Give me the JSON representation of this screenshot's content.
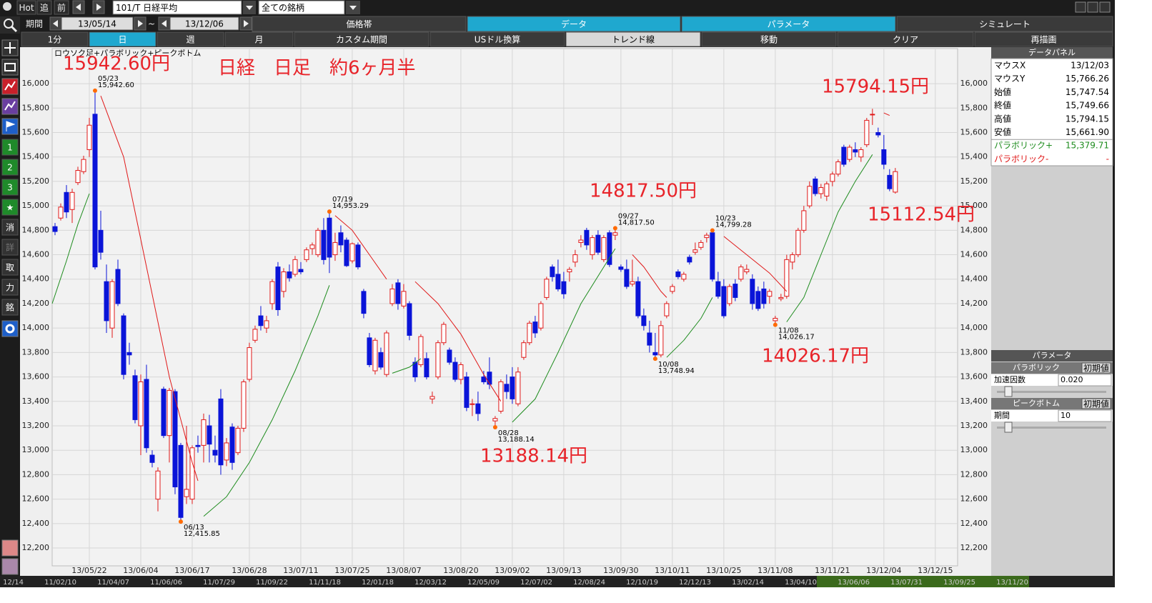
{
  "toolbar": {
    "buttons": [
      "Hot",
      "追",
      "前"
    ],
    "symbol": "101/T 日経平均",
    "filter": "全ての銘柄"
  },
  "period": {
    "label": "期間",
    "from": "13/05/14",
    "separator": "~",
    "to": "13/12/06"
  },
  "tabs": [
    "価格帯",
    "データ",
    "パラメータ",
    "シミュレート"
  ],
  "subtabs": [
    "1分",
    "日",
    "週",
    "月",
    "カスタム期間",
    "USドル換算",
    "トレンド線",
    "移動",
    "クリア",
    "再描画"
  ],
  "side_buttons": [
    "1",
    "2",
    "3",
    "★",
    "消",
    "詳",
    "取",
    "力",
    "銘"
  ],
  "chart_data": {
    "type": "candlestick",
    "title": "ロウソク足+パラボリック+ピークボトム",
    "annotations": [
      "15942.60円",
      "日経　日足　約6ヶ月半",
      "15794.15円",
      "14817.50円",
      "15112.54円",
      "13188.14円",
      "14026.17円"
    ],
    "xlim": [
      -0.5,
      157.9
    ],
    "ylim": [
      12054,
      16287
    ],
    "grid": true,
    "up_color": "#e01818",
    "down_color": "#0a14d8",
    "xticks": [
      {
        "value": 6,
        "label": "13/05/22"
      },
      {
        "value": 15,
        "label": "13/06/04"
      },
      {
        "value": 24,
        "label": "13/06/17"
      },
      {
        "value": 34,
        "label": "13/06/28"
      },
      {
        "value": 43,
        "label": "13/07/11"
      },
      {
        "value": 52,
        "label": "13/07/25"
      },
      {
        "value": 61,
        "label": "13/08/07"
      },
      {
        "value": 71,
        "label": "13/08/20"
      },
      {
        "value": 80,
        "label": "13/09/02"
      },
      {
        "value": 89,
        "label": "13/09/13"
      },
      {
        "value": 99,
        "label": "13/09/30"
      },
      {
        "value": 108,
        "label": "13/10/11"
      },
      {
        "value": 117,
        "label": "13/10/25"
      },
      {
        "value": 126,
        "label": "13/11/08"
      },
      {
        "value": 136,
        "label": "13/11/21"
      },
      {
        "value": 145,
        "label": "13/12/04"
      },
      {
        "value": 154,
        "label": "13/12/15"
      }
    ],
    "yticks": [
      {
        "value": 12200,
        "label": "12,200"
      },
      {
        "value": 12400,
        "label": "12,400"
      },
      {
        "value": 12600,
        "label": "12,600"
      },
      {
        "value": 12800,
        "label": "12,800"
      },
      {
        "value": 13000,
        "label": "13,000"
      },
      {
        "value": 13200,
        "label": "13,200"
      },
      {
        "value": 13400,
        "label": "13,400"
      },
      {
        "value": 13600,
        "label": "13,600"
      },
      {
        "value": 13800,
        "label": "13,800"
      },
      {
        "value": 14000,
        "label": "14,000"
      },
      {
        "value": 14200,
        "label": "14,200"
      },
      {
        "value": 14400,
        "label": "14,400"
      },
      {
        "value": 14600,
        "label": "14,600"
      },
      {
        "value": 14800,
        "label": "14,800"
      },
      {
        "value": 15000,
        "label": "15,000"
      },
      {
        "value": 15200,
        "label": "15,200"
      },
      {
        "value": 15400,
        "label": "15,400"
      },
      {
        "value": 15600,
        "label": "15,600"
      },
      {
        "value": 15800,
        "label": "15,800"
      },
      {
        "value": 16000,
        "label": "16,000"
      }
    ],
    "open": [
      14830,
      14900,
      15110,
      14970,
      15190,
      15280,
      15460,
      15750,
      14800,
      14380,
      14000,
      14480,
      14100,
      13800,
      13610,
      13200,
      13580,
      12960,
      12600,
      13500,
      13120,
      13480,
      13040,
      12620,
      12600,
      13040,
      13040,
      13200,
      13000,
      13420,
      12920,
      13190,
      12980,
      13180,
      13580,
      13900,
      14100,
      14000,
      14200,
      14500,
      14300,
      14460,
      14440,
      14480,
      14560,
      14650,
      14600,
      14800,
      14900,
      14600,
      14780,
      14720,
      14550,
      14680,
      14300,
      13920,
      13650,
      13800,
      13620,
      14200,
      14370,
      14180,
      14200,
      13720,
      13700,
      13750,
      13420,
      13600,
      13880,
      13820,
      13720,
      13580,
      13600,
      13380,
      13380,
      13600,
      13640,
      13240,
      13320,
      13540,
      13600,
      13380,
      13760,
      13880,
      14050,
      14000,
      14250,
      14500,
      14440,
      14380,
      14460,
      14540,
      14700,
      14800,
      14600,
      14760,
      14560,
      14780,
      14760,
      14500,
      14480,
      14360,
      14380,
      14100,
      13960,
      13800,
      13780,
      14100,
      14300,
      14460,
      14400,
      14580,
      14620,
      14660,
      14740,
      14780,
      14380,
      14340,
      14200,
      14360,
      14400,
      14460,
      14400,
      14300,
      14320,
      14260,
      14060,
      14240,
      14260,
      14540,
      14600,
      14800,
      15000,
      15220,
      15100,
      15080,
      15200,
      15260,
      15480,
      15380,
      15460,
      15400,
      15500,
      15747.54,
      15600,
      15460,
      15250,
      15112.54
    ],
    "high": [
      14860,
      15020,
      15170,
      15140,
      15320,
      15410,
      15720,
      15942.6,
      14960,
      14520,
      14400,
      14560,
      14120,
      13880,
      13660,
      13620,
      13700,
      13000,
      12860,
      13520,
      13510,
      13500,
      13060,
      13200,
      13040,
      13120,
      13300,
      13290,
      13120,
      13500,
      13100,
      13220,
      13200,
      13580,
      13880,
      14020,
      14180,
      14100,
      14400,
      14540,
      14490,
      14520,
      14590,
      14540,
      14660,
      14700,
      14820,
      14900,
      14953.29,
      14780,
      14840,
      14740,
      14700,
      14700,
      14320,
      13960,
      13920,
      13840,
      13980,
      14360,
      14400,
      14360,
      14220,
      13760,
      13950,
      13800,
      13480,
      13900,
      14050,
      13840,
      13760,
      13720,
      13640,
      13420,
      13480,
      13650,
      13760,
      13280,
      13580,
      13620,
      13680,
      13680,
      13900,
      14060,
      14100,
      14220,
      14420,
      14520,
      14560,
      14460,
      14500,
      14640,
      14760,
      14820,
      14760,
      14800,
      14760,
      14800,
      14817.5,
      14520,
      14560,
      14560,
      14420,
      14160,
      14060,
      13960,
      14060,
      14220,
      14360,
      14480,
      14460,
      14600,
      14700,
      14720,
      14780,
      14799.28,
      14460,
      14400,
      14360,
      14400,
      14520,
      14520,
      14440,
      14340,
      14380,
      14320,
      14100,
      14280,
      14600,
      14620,
      14820,
      15000,
      15200,
      15240,
      15180,
      15200,
      15280,
      15380,
      15500,
      15500,
      15520,
      15480,
      15720,
      15794.15,
      15640,
      15580,
      15300,
      15310
    ],
    "low": [
      14760,
      14880,
      14900,
      14860,
      15170,
      15260,
      15400,
      14480,
      14560,
      13960,
      13920,
      14180,
      13580,
      13700,
      13220,
      12960,
      12980,
      12860,
      12500,
      13100,
      12900,
      12640,
      12415.85,
      12560,
      12560,
      12980,
      12900,
      12900,
      12900,
      12800,
      12870,
      12840,
      12960,
      13150,
      13560,
      13880,
      13980,
      13960,
      14150,
      14100,
      14250,
      14380,
      14420,
      14440,
      14540,
      14600,
      14580,
      14520,
      14450,
      14550,
      14620,
      14500,
      14530,
      14480,
      14080,
      13680,
      13620,
      13660,
      13600,
      14180,
      14150,
      14160,
      13900,
      13560,
      13680,
      13580,
      13380,
      13580,
      13860,
      13700,
      13560,
      13540,
      13320,
      13280,
      13240,
      13540,
      13500,
      13188.14,
      13300,
      13420,
      13380,
      13360,
      13740,
      13860,
      13920,
      13980,
      14230,
      14380,
      14300,
      14240,
      14380,
      14500,
      14660,
      14640,
      14560,
      14600,
      14540,
      14500,
      14720,
      14460,
      14320,
      14340,
      14080,
      13980,
      13800,
      13748.94,
      13760,
      14080,
      14280,
      14400,
      14380,
      14520,
      14600,
      14640,
      14700,
      14380,
      14240,
      14080,
      14180,
      14220,
      14380,
      14440,
      14150,
      14140,
      14160,
      14200,
      14026.17,
      14220,
      14240,
      14480,
      14580,
      14780,
      14980,
      15080,
      15060,
      15040,
      15160,
      15240,
      15320,
      15360,
      15400,
      15360,
      15480,
      15661.9,
      15560,
      15300,
      15120,
      15100
    ],
    "close": [
      14790,
      14990,
      14950,
      15110,
      15290,
      15380,
      15660,
      14500,
      14620,
      14060,
      14380,
      14200,
      13620,
      13780,
      13250,
      13560,
      13020,
      12900,
      12830,
      13120,
      13490,
      12700,
      12450,
      12680,
      13020,
      13030,
      13250,
      13050,
      12960,
      12880,
      13060,
      12900,
      13180,
      13560,
      13840,
      13990,
      14020,
      14060,
      14380,
      14150,
      14460,
      14410,
      14560,
      14460,
      14640,
      14680,
      14800,
      14560,
      14580,
      14700,
      14680,
      14510,
      14690,
      14500,
      14120,
      13700,
      13900,
      13680,
      13960,
      14320,
      14200,
      14300,
      13940,
      13600,
      13930,
      13600,
      13440,
      13880,
      14030,
      13720,
      13580,
      13700,
      13350,
      13380,
      13300,
      13560,
      13540,
      13260,
      13560,
      13480,
      13420,
      13640,
      13880,
      14040,
      13960,
      14200,
      14400,
      14420,
      14320,
      14280,
      14480,
      14600,
      14720,
      14680,
      14740,
      14620,
      14740,
      14520,
      14780,
      14480,
      14340,
      14380,
      14100,
      14020,
      13860,
      13780,
      14020,
      14200,
      14340,
      14420,
      14440,
      14540,
      14640,
      14700,
      14760,
      14400,
      14260,
      14100,
      14340,
      14250,
      14500,
      14480,
      14200,
      14160,
      14200,
      14300,
      14080,
      14250,
      14560,
      14600,
      14800,
      14960,
      15160,
      15100,
      15150,
      15180,
      15260,
      15360,
      15340,
      15480,
      15440,
      15460,
      15700,
      15749.66,
      15580,
      15340,
      15140,
      15280
    ],
    "parabolic_plus": {
      "color": "#1e8c1e",
      "segments": [
        {
          "x": [
            -0.5,
            2,
            4,
            6
          ],
          "values": [
            14200,
            14550,
            14850,
            15100
          ]
        },
        {
          "x": [
            26,
            30,
            34,
            38,
            42,
            46,
            48
          ],
          "values": [
            12460,
            12620,
            12900,
            13250,
            13650,
            14100,
            14350
          ]
        },
        {
          "x": [
            59,
            62,
            64
          ],
          "values": [
            13630,
            13680,
            13750
          ]
        },
        {
          "x": [
            80,
            84,
            88,
            92,
            96,
            98
          ],
          "values": [
            13230,
            13420,
            13800,
            14200,
            14500,
            14650
          ]
        },
        {
          "x": [
            107,
            110,
            113,
            115
          ],
          "values": [
            13760,
            13900,
            14080,
            14250
          ]
        },
        {
          "x": [
            128,
            131,
            134,
            137,
            140,
            143
          ],
          "values": [
            14050,
            14250,
            14600,
            14950,
            15200,
            15420
          ]
        }
      ]
    },
    "parabolic_minus": {
      "color": "#e01818",
      "segments": [
        {
          "x": [
            8,
            12,
            16,
            20,
            24,
            25
          ],
          "values": [
            15900,
            15400,
            14500,
            13600,
            12900,
            12750
          ]
        },
        {
          "x": [
            49,
            52,
            55,
            58
          ],
          "values": [
            14920,
            14800,
            14600,
            14400
          ]
        },
        {
          "x": [
            63,
            67,
            71,
            75,
            78
          ],
          "values": [
            14380,
            14200,
            13950,
            13620,
            13400
          ]
        },
        {
          "x": [
            101,
            103,
            106,
            107
          ],
          "values": [
            14600,
            14500,
            14300,
            14250
          ]
        },
        {
          "x": [
            117,
            121,
            125,
            128
          ],
          "values": [
            14750,
            14600,
            14450,
            14300
          ]
        },
        {
          "x": [
            145,
            146
          ],
          "values": [
            15760,
            15740
          ]
        }
      ]
    },
    "peak_color": "#ff6a00",
    "peaks": [
      {
        "x": 7,
        "value": 15942.6,
        "date": "05/23",
        "label": "15,942.60",
        "position": "above"
      },
      {
        "x": 22,
        "value": 12415.85,
        "date": "06/13",
        "label": "12,415.85",
        "position": "below"
      },
      {
        "x": 48,
        "value": 14953.29,
        "date": "07/19",
        "label": "14,953.29",
        "position": "above"
      },
      {
        "x": 77,
        "value": 13188.14,
        "date": "08/28",
        "label": "13,188.14",
        "position": "below"
      },
      {
        "x": 98,
        "value": 14817.5,
        "date": "09/27",
        "label": "14,817.50",
        "position": "above"
      },
      {
        "x": 105,
        "value": 13748.94,
        "date": "10/08",
        "label": "13,748.94",
        "position": "below"
      },
      {
        "x": 115,
        "value": 14799.28,
        "date": "10/23",
        "label": "14,799.28",
        "position": "above"
      },
      {
        "x": 126,
        "value": 14026.17,
        "date": "11/08",
        "label": "14,026.17",
        "position": "below"
      }
    ]
  },
  "data_panel": {
    "title": "データパネル",
    "rows": [
      [
        "マウスX",
        "13/12/03"
      ],
      [
        "マウスY",
        "15,766.26"
      ],
      [
        "始値",
        "15,747.54"
      ],
      [
        "終値",
        "15,749.66"
      ],
      [
        "高値",
        "15,794.15"
      ],
      [
        "安値",
        "15,661.90"
      ],
      [
        "パラボリック+",
        "15,379.71"
      ],
      [
        "パラボリック-",
        "-"
      ]
    ]
  },
  "parameters": {
    "title": "パラメータ",
    "groups": [
      {
        "name": "パラボリック",
        "reset": "初期値",
        "field": "加速因数",
        "value": "0.020"
      },
      {
        "name": "ピークボトム",
        "reset": "初期値",
        "field": "期間",
        "value": "10"
      }
    ]
  },
  "navigator": {
    "dates": [
      "12/14",
      "11/02/10",
      "11/04/07",
      "11/06/06",
      "11/07/29",
      "11/09/22",
      "11/11/18",
      "12/01/18",
      "12/03/12",
      "12/05/09",
      "12/07/02",
      "12/08/24",
      "12/10/19",
      "12/12/13",
      "13/02/14",
      "13/04/10",
      "13/06/06",
      "13/07/31",
      "13/09/25",
      "13/11/20"
    ]
  }
}
